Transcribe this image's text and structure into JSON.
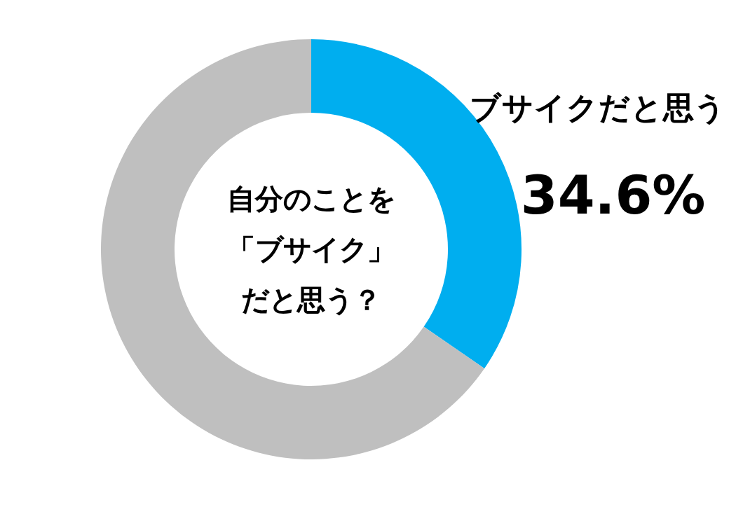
{
  "chart_data": {
    "type": "donut",
    "title": "自分のことを「ブサイク」だと思う？",
    "categories": [
      "ブサイクだと思う",
      null
    ],
    "values": [
      34.6,
      65.4
    ],
    "colors": [
      "#00aeef",
      "#bfbfbf"
    ],
    "value_labels": [
      "34.6%",
      null
    ]
  }
}
